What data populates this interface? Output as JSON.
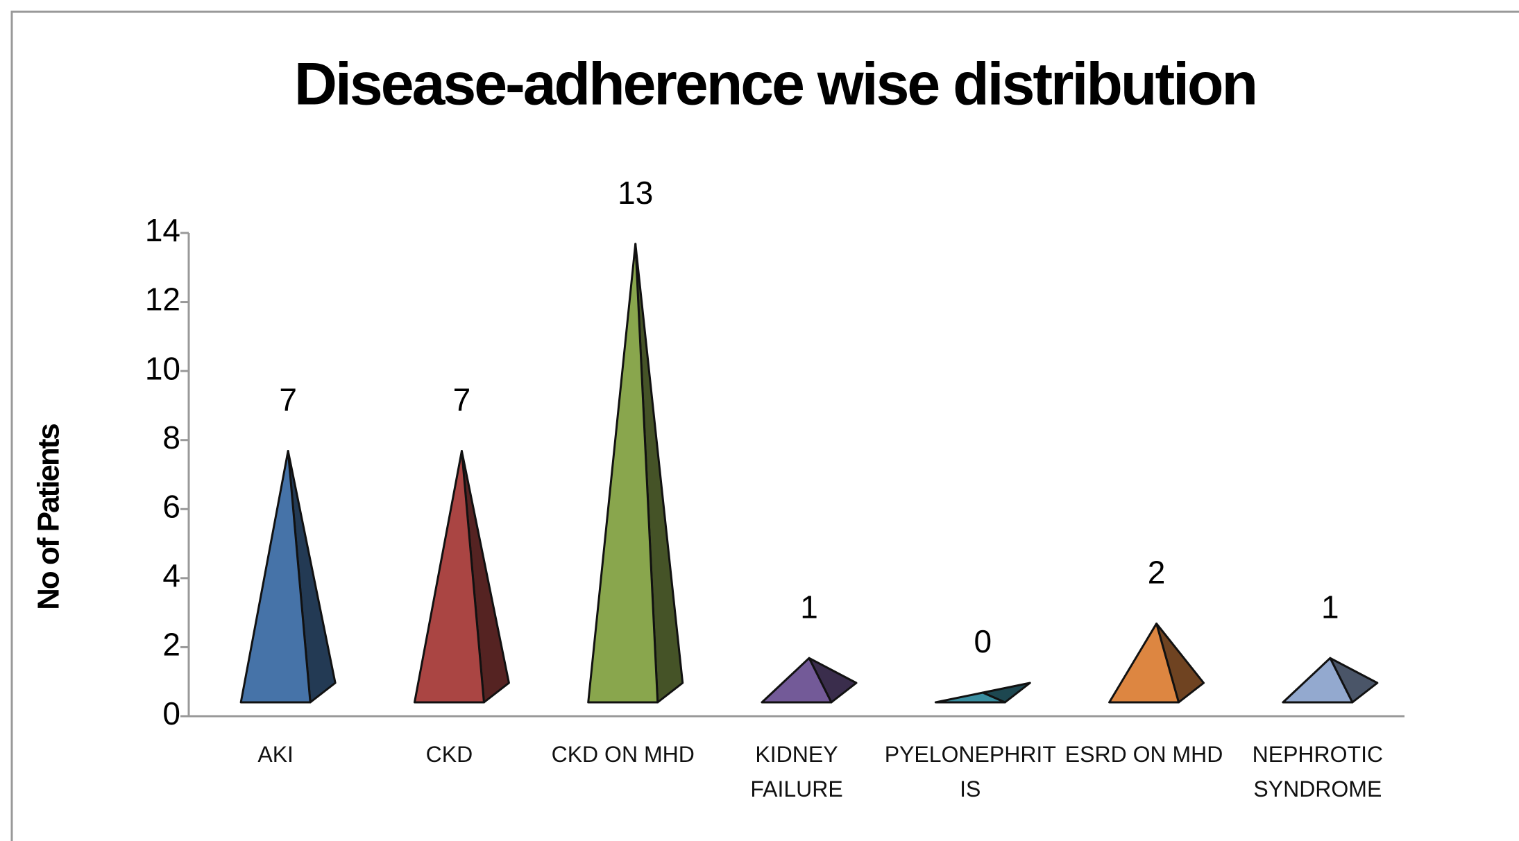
{
  "chart_data": {
    "type": "pyramid",
    "title": "Disease-adherence wise distribution",
    "y_label": "No of Patients",
    "categories": [
      "AKI",
      "CKD",
      "CKD ON MHD",
      "KIDNEY FAILURE",
      "PYELONEPHRITIS",
      "ESRD ON MHD",
      "NEPHROTIC SYNDROME"
    ],
    "values": [
      7,
      7,
      13,
      1,
      0,
      2,
      1
    ],
    "colors": [
      "#4673a8",
      "#aa4543",
      "#89a64d",
      "#735a98",
      "#3a8ea0",
      "#dd8641",
      "#93a9cf"
    ],
    "ylim": [
      0,
      14
    ],
    "yticks": [
      0,
      2,
      4,
      6,
      8,
      10,
      12,
      14
    ]
  }
}
